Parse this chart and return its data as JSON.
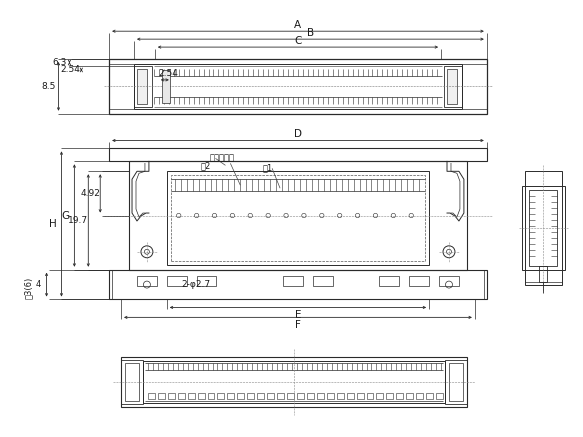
{
  "bg_color": "#ffffff",
  "line_color": "#2a2a2a",
  "dim_color": "#2a2a2a",
  "dims": {
    "A": "A",
    "B": "B",
    "C": "C",
    "D": "D",
    "E": "E",
    "F": "F",
    "G": "G",
    "H": "H",
    "6.3": "6.3",
    "2.54_vert": "2.54",
    "8.5": "8.5",
    "19.7": "19.7",
    "4.92": "4.92",
    "note3_6": "泣3(6)",
    "note4": "4",
    "dim_254": "2.54",
    "dim_2phi27": "2-φ2.7",
    "note1": "泣1",
    "note2": "泣2",
    "polarity": "極性マーク"
  },
  "fs_lbl": 7.5,
  "fs_dim": 6.5,
  "fs_note": 6.0
}
